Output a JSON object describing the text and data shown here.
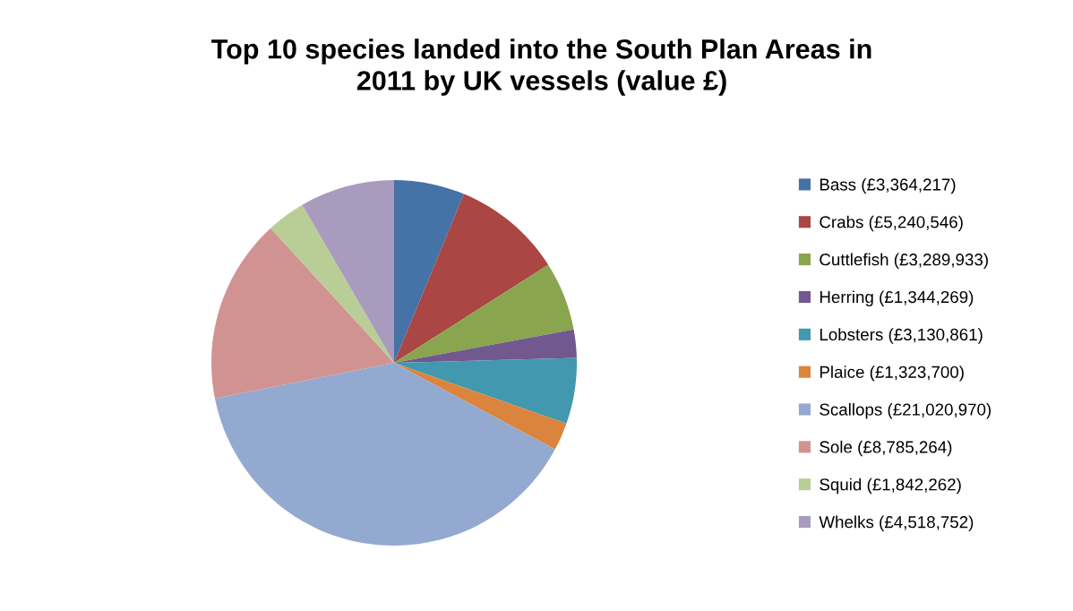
{
  "chart_data": {
    "type": "pie",
    "title": "Top 10 species landed into the South Plan Areas in\n2011 by UK vessels (value £)",
    "categories": [
      "Bass (£3,364,217)",
      "Crabs (£5,240,546)",
      "Cuttlefish (£3,289,933)",
      "Herring (£1,344,269)",
      "Lobsters (£3,130,861)",
      "Plaice (£1,323,700)",
      "Scallops (£21,020,970)",
      "Sole (£8,785,264)",
      "Squid (£1,842,262)",
      "Whelks (£4,518,752)"
    ],
    "values": [
      3364217,
      5240546,
      3289933,
      1344269,
      3130861,
      1323700,
      21020970,
      8785264,
      1842262,
      4518752
    ],
    "colors": [
      "#4572a7",
      "#aa4643",
      "#89a54e",
      "#71588f",
      "#4198af",
      "#db843d",
      "#93a9cf",
      "#d19392",
      "#b9cd96",
      "#a99bbd"
    ],
    "legend": "right"
  }
}
